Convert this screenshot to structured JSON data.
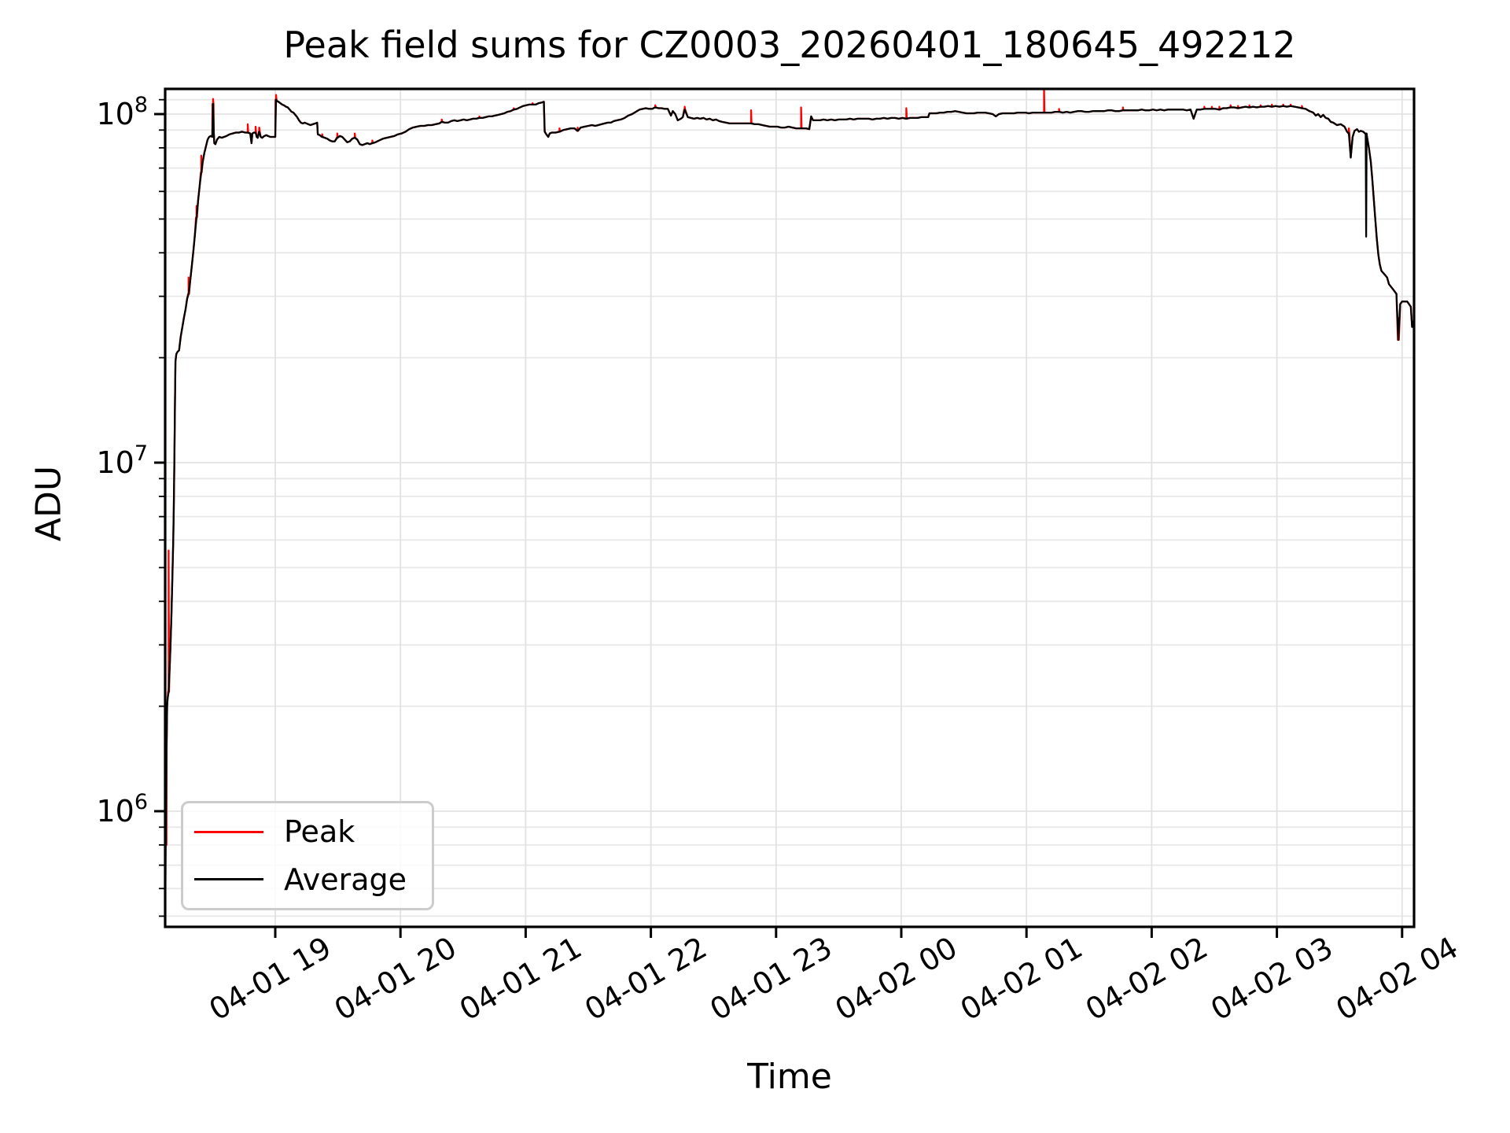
{
  "header": {
    "title": "Peak field sums for CZ0003_20260401_180645_492212"
  },
  "axes": {
    "xlabel": "Time",
    "ylabel": "ADU"
  },
  "legend": {
    "position": "lower left",
    "items": [
      {
        "label": "Peak",
        "color": "#ff0000"
      },
      {
        "label": "Average",
        "color": "#000000"
      }
    ]
  },
  "colors": {
    "peak_line": "#ff0000",
    "average_line": "#000000",
    "grid_major": "#e2e2e2",
    "grid_minor": "#e8e8e8",
    "spine": "#000000",
    "background": "#ffffff"
  },
  "chart_data": {
    "type": "line",
    "title": "Peak field sums for CZ0003_20260401_180645_492212",
    "xlabel": "Time",
    "ylabel": "ADU",
    "y_scale": "log",
    "grid": true,
    "x_unit": "hours since 2026-04-01 18:00",
    "y_unit": "millions of ADU",
    "xlim_hours": [
      0.115,
      10.095
    ],
    "ylim_adu": [
      470000,
      120000000
    ],
    "x_ticks": [
      {
        "t": 1,
        "label": "04-01 19"
      },
      {
        "t": 2,
        "label": "04-01 20"
      },
      {
        "t": 3,
        "label": "04-01 21"
      },
      {
        "t": 4,
        "label": "04-01 22"
      },
      {
        "t": 5,
        "label": "04-01 23"
      },
      {
        "t": 6,
        "label": "04-02 00"
      },
      {
        "t": 7,
        "label": "04-02 01"
      },
      {
        "t": 8,
        "label": "04-02 02"
      },
      {
        "t": 9,
        "label": "04-02 03"
      },
      {
        "t": 10,
        "label": "04-02 04"
      }
    ],
    "y_ticks": [
      {
        "millions": 1,
        "base": "10",
        "exp": "6"
      },
      {
        "millions": 10,
        "base": "10",
        "exp": "7"
      },
      {
        "millions": 100,
        "base": "10",
        "exp": "8"
      }
    ],
    "series": [
      {
        "name": "Average",
        "color": "#000000",
        "t": [
          0.121,
          0.125,
          0.128,
          0.132,
          0.136,
          0.14,
          0.148,
          0.155,
          0.162,
          0.17,
          0.178,
          0.185,
          0.19,
          0.195,
          0.199,
          0.203,
          0.21,
          0.22,
          0.232,
          0.245,
          0.258,
          0.27,
          0.283,
          0.296,
          0.308,
          0.32,
          0.333,
          0.346,
          0.358,
          0.371,
          0.384,
          0.396,
          0.409,
          0.421,
          0.434,
          0.447,
          0.46,
          0.472,
          0.485,
          0.497,
          0.503,
          0.509,
          0.513,
          0.522,
          0.535,
          0.553,
          0.572,
          0.591,
          0.61,
          0.635,
          0.66,
          0.685,
          0.71,
          0.735,
          0.76,
          0.78,
          0.8,
          0.81,
          0.817,
          0.83,
          0.843,
          0.852,
          0.86,
          0.872,
          0.884,
          0.896,
          0.912,
          0.928,
          0.944,
          0.96,
          0.98,
          1.0,
          1.006,
          1.014,
          1.025,
          1.04,
          1.055,
          1.07,
          1.085,
          1.1,
          1.115,
          1.13,
          1.145,
          1.16,
          1.175,
          1.19,
          1.205,
          1.22,
          1.235,
          1.25,
          1.265,
          1.28,
          1.3,
          1.32,
          1.335,
          1.34,
          1.355,
          1.375,
          1.395,
          1.415,
          1.435,
          1.455,
          1.475,
          1.495,
          1.515,
          1.535,
          1.555,
          1.575,
          1.595,
          1.615,
          1.635,
          1.655,
          1.675,
          1.695,
          1.715,
          1.735,
          1.755,
          1.775,
          1.8,
          1.83,
          1.86,
          1.89,
          1.92,
          1.95,
          1.98,
          2.01,
          2.04,
          2.07,
          2.1,
          2.13,
          2.16,
          2.19,
          2.22,
          2.25,
          2.28,
          2.31,
          2.33,
          2.355,
          2.38,
          2.405,
          2.43,
          2.455,
          2.48,
          2.505,
          2.53,
          2.555,
          2.58,
          2.605,
          2.63,
          2.655,
          2.68,
          2.705,
          2.73,
          2.755,
          2.78,
          2.805,
          2.83,
          2.855,
          2.88,
          2.905,
          2.93,
          2.955,
          2.98,
          3.005,
          3.03,
          3.055,
          3.08,
          3.105,
          3.13,
          3.145,
          3.152,
          3.165,
          3.18,
          3.192,
          3.21,
          3.24,
          3.27,
          3.3,
          3.33,
          3.36,
          3.39,
          3.415,
          3.44,
          3.47,
          3.5,
          3.53,
          3.555,
          3.58,
          3.605,
          3.63,
          3.655,
          3.68,
          3.705,
          3.73,
          3.76,
          3.79,
          3.82,
          3.85,
          3.88,
          3.91,
          3.935,
          3.96,
          3.985,
          4.01,
          4.035,
          4.06,
          4.085,
          4.11,
          4.135,
          4.16,
          4.175,
          4.195,
          4.215,
          4.24,
          4.255,
          4.27,
          4.295,
          4.32,
          4.345,
          4.37,
          4.395,
          4.42,
          4.445,
          4.47,
          4.495,
          4.52,
          4.545,
          4.57,
          4.6,
          4.63,
          4.66,
          4.69,
          4.72,
          4.75,
          4.78,
          4.8,
          4.83,
          4.86,
          4.89,
          4.92,
          4.95,
          4.98,
          5.01,
          5.04,
          5.07,
          5.1,
          5.13,
          5.16,
          5.2,
          5.24,
          5.265,
          5.28,
          5.295,
          5.32,
          5.35,
          5.38,
          5.41,
          5.44,
          5.47,
          5.5,
          5.53,
          5.56,
          5.59,
          5.62,
          5.65,
          5.68,
          5.71,
          5.74,
          5.77,
          5.8,
          5.83,
          5.86,
          5.89,
          5.92,
          5.95,
          5.98,
          6.01,
          6.04,
          6.07,
          6.1,
          6.13,
          6.16,
          6.19,
          6.215,
          6.225,
          6.25,
          6.28,
          6.31,
          6.34,
          6.37,
          6.4,
          6.43,
          6.46,
          6.49,
          6.52,
          6.55,
          6.58,
          6.61,
          6.64,
          6.67,
          6.7,
          6.73,
          6.755,
          6.78,
          6.81,
          6.84,
          6.87,
          6.9,
          6.93,
          6.96,
          6.99,
          7.02,
          7.05,
          7.08,
          7.11,
          7.14,
          7.17,
          7.2,
          7.23,
          7.26,
          7.29,
          7.32,
          7.35,
          7.38,
          7.41,
          7.44,
          7.47,
          7.5,
          7.53,
          7.56,
          7.59,
          7.62,
          7.65,
          7.68,
          7.71,
          7.74,
          7.77,
          7.8,
          7.83,
          7.86,
          7.89,
          7.92,
          7.95,
          7.98,
          8.01,
          8.04,
          8.07,
          8.1,
          8.13,
          8.16,
          8.19,
          8.22,
          8.25,
          8.28,
          8.31,
          8.335,
          8.36,
          8.39,
          8.42,
          8.45,
          8.48,
          8.51,
          8.54,
          8.57,
          8.6,
          8.63,
          8.66,
          8.69,
          8.72,
          8.75,
          8.78,
          8.81,
          8.84,
          8.87,
          8.9,
          8.93,
          8.96,
          8.99,
          9.02,
          9.05,
          9.08,
          9.11,
          9.14,
          9.17,
          9.2,
          9.23,
          9.26,
          9.29,
          9.31,
          9.33,
          9.35,
          9.37,
          9.39,
          9.41,
          9.43,
          9.45,
          9.48,
          9.51,
          9.54,
          9.56,
          9.575,
          9.59,
          9.605,
          9.62,
          9.64,
          9.655,
          9.67,
          9.69,
          9.705,
          9.72,
          9.735,
          9.75,
          9.762,
          9.774,
          9.786,
          9.798,
          9.81,
          9.822,
          9.835,
          9.85,
          9.865,
          9.88,
          9.895,
          9.91,
          9.925,
          9.94,
          9.955,
          9.97,
          9.985,
          10.0,
          10.02,
          10.04,
          10.055,
          10.07,
          10.08,
          10.09
        ],
        "adu_millions": [
          0.52,
          0.8,
          1.05,
          1.5,
          2.0,
          2.1,
          2.2,
          2.5,
          2.9,
          3.6,
          4.6,
          6.0,
          7.5,
          10.5,
          15.0,
          19.5,
          20.5,
          20.8,
          21.0,
          23.0,
          24.5,
          26.0,
          27.5,
          29.5,
          30.5,
          33.0,
          36.5,
          40.5,
          45.0,
          50.5,
          56.5,
          62.0,
          68.0,
          73.0,
          77.5,
          81.0,
          84.5,
          86.0,
          86.5,
          86.0,
          107.0,
          89.0,
          82.5,
          82.0,
          84.5,
          86.0,
          85.5,
          86.0,
          86.5,
          87.5,
          88.0,
          88.5,
          88.5,
          89.0,
          88.5,
          88.5,
          88.0,
          82.5,
          88.0,
          88.5,
          88.5,
          86.0,
          85.5,
          89.0,
          86.0,
          85.5,
          86.5,
          87.0,
          86.5,
          86.0,
          86.0,
          86.0,
          110.0,
          109.0,
          108.5,
          107.5,
          106.5,
          106.0,
          105.0,
          104.5,
          103.0,
          101.5,
          101.0,
          99.5,
          98.0,
          96.0,
          94.5,
          94.0,
          94.5,
          94.0,
          93.5,
          93.0,
          93.5,
          94.0,
          94.5,
          87.5,
          87.0,
          86.0,
          85.5,
          85.0,
          84.0,
          83.5,
          83.5,
          85.5,
          86.5,
          86.0,
          84.5,
          83.0,
          83.5,
          85.0,
          85.5,
          84.5,
          82.0,
          81.5,
          82.0,
          82.5,
          82.0,
          82.5,
          83.0,
          84.0,
          85.0,
          85.5,
          86.0,
          86.5,
          87.5,
          88.0,
          89.0,
          90.5,
          91.5,
          92.0,
          92.5,
          92.5,
          93.0,
          93.0,
          93.5,
          94.0,
          95.0,
          94.5,
          94.5,
          95.5,
          96.0,
          95.5,
          96.0,
          96.5,
          96.0,
          96.5,
          97.0,
          97.0,
          97.5,
          97.5,
          98.0,
          98.5,
          98.5,
          99.0,
          99.5,
          100.0,
          100.5,
          101.5,
          102.0,
          103.0,
          103.5,
          104.5,
          105.5,
          106.0,
          106.5,
          106.5,
          106.5,
          107.5,
          108.0,
          108.5,
          89.0,
          87.5,
          86.0,
          88.0,
          88.5,
          88.5,
          89.0,
          90.0,
          90.5,
          91.0,
          91.0,
          89.5,
          91.5,
          92.0,
          92.5,
          93.0,
          92.5,
          93.0,
          93.5,
          94.0,
          94.5,
          94.5,
          95.5,
          96.0,
          96.5,
          97.5,
          99.0,
          100.0,
          101.5,
          103.0,
          103.5,
          104.0,
          103.5,
          103.5,
          104.5,
          104.0,
          104.0,
          103.5,
          103.5,
          99.0,
          102.0,
          100.0,
          96.0,
          97.0,
          98.0,
          103.0,
          98.0,
          97.5,
          97.0,
          97.5,
          97.0,
          97.5,
          96.5,
          97.0,
          96.0,
          96.5,
          95.5,
          95.0,
          94.5,
          94.0,
          94.0,
          94.0,
          94.0,
          94.0,
          94.0,
          94.0,
          93.5,
          93.5,
          93.0,
          92.5,
          92.0,
          92.0,
          92.0,
          91.5,
          91.5,
          92.0,
          91.5,
          91.0,
          91.0,
          91.0,
          90.5,
          98.5,
          96.0,
          96.0,
          96.0,
          96.5,
          96.0,
          96.5,
          96.0,
          96.5,
          96.5,
          96.5,
          97.0,
          96.5,
          97.0,
          97.0,
          97.0,
          97.0,
          96.5,
          97.0,
          97.0,
          97.5,
          97.0,
          97.5,
          97.5,
          97.0,
          97.5,
          97.0,
          97.5,
          97.5,
          97.5,
          98.0,
          98.0,
          98.0,
          100.5,
          100.5,
          100.5,
          101.0,
          101.0,
          101.5,
          101.5,
          102.0,
          101.5,
          101.0,
          100.5,
          100.5,
          100.5,
          101.0,
          101.0,
          101.0,
          100.5,
          100.0,
          98.5,
          100.0,
          100.5,
          100.5,
          100.5,
          100.5,
          101.0,
          101.0,
          101.0,
          100.5,
          101.0,
          101.0,
          101.0,
          101.0,
          101.0,
          101.0,
          101.5,
          101.5,
          101.0,
          101.5,
          101.0,
          101.5,
          102.0,
          102.0,
          101.5,
          101.5,
          102.0,
          102.0,
          102.0,
          102.0,
          102.5,
          102.5,
          102.0,
          102.0,
          102.5,
          102.5,
          102.5,
          102.5,
          102.5,
          103.0,
          102.5,
          102.5,
          103.0,
          102.5,
          103.0,
          102.5,
          103.0,
          103.0,
          103.0,
          103.0,
          103.0,
          102.5,
          103.0,
          97.0,
          103.0,
          103.0,
          103.5,
          103.5,
          103.5,
          103.5,
          103.0,
          104.0,
          104.0,
          104.5,
          104.5,
          104.0,
          104.5,
          105.0,
          104.5,
          105.0,
          104.5,
          105.0,
          105.0,
          105.5,
          105.0,
          105.5,
          105.0,
          105.5,
          105.0,
          105.5,
          105.0,
          104.5,
          104.0,
          103.5,
          102.0,
          101.0,
          99.0,
          100.0,
          98.0,
          99.5,
          97.5,
          97.0,
          95.0,
          94.5,
          93.0,
          93.5,
          92.0,
          89.0,
          88.0,
          75.0,
          86.0,
          89.5,
          90.5,
          89.0,
          89.5,
          89.0,
          88.0,
          86.0,
          80.0,
          73.0,
          65.0,
          57.0,
          50.0,
          44.0,
          39.5,
          37.0,
          35.5,
          35.0,
          34.5,
          34.0,
          32.5,
          32.0,
          31.5,
          31.0,
          30.5,
          22.5,
          28.5,
          29.0,
          29.0,
          29.0,
          28.5,
          28.0,
          24.5,
          25.5
        ],
        "dips": [
          [
            9.713,
            44.5
          ]
        ]
      },
      {
        "name": "Peak",
        "color": "#ff0000",
        "base": "Average",
        "spikes": [
          [
            0.127,
            1.12
          ],
          [
            0.148,
            5.6
          ],
          [
            0.308,
            34.0
          ],
          [
            0.371,
            54.5
          ],
          [
            0.409,
            76.0
          ],
          [
            0.503,
            110.5
          ],
          [
            0.78,
            93.5
          ],
          [
            0.843,
            92.0
          ],
          [
            0.872,
            91.5
          ],
          [
            1.006,
            113.5
          ],
          [
            1.375,
            87.5
          ],
          [
            1.495,
            88.0
          ],
          [
            1.635,
            88.0
          ],
          [
            1.775,
            84.0
          ],
          [
            2.33,
            96.5
          ],
          [
            2.63,
            98.5
          ],
          [
            2.905,
            104.0
          ],
          [
            3.055,
            107.5
          ],
          [
            3.27,
            91.0
          ],
          [
            3.415,
            91.5
          ],
          [
            4.035,
            106.0
          ],
          [
            4.27,
            105.0
          ],
          [
            4.8,
            102.5
          ],
          [
            5.2,
            104.5
          ],
          [
            6.04,
            104.0
          ],
          [
            7.14,
            119.0
          ],
          [
            7.26,
            103.5
          ],
          [
            7.77,
            104.5
          ],
          [
            8.42,
            105.0
          ],
          [
            8.48,
            105.0
          ],
          [
            8.54,
            105.0
          ],
          [
            8.63,
            106.0
          ],
          [
            8.69,
            105.5
          ],
          [
            8.78,
            106.0
          ],
          [
            8.87,
            106.0
          ],
          [
            8.96,
            106.5
          ],
          [
            9.05,
            106.5
          ],
          [
            9.11,
            106.5
          ],
          [
            9.2,
            105.5
          ],
          [
            9.575,
            91.0
          ],
          [
            9.97,
            26.0
          ]
        ]
      }
    ]
  }
}
